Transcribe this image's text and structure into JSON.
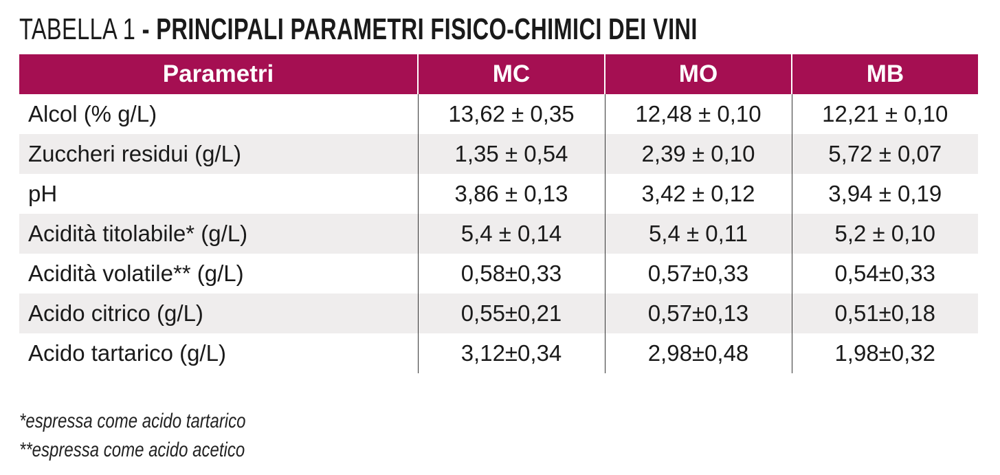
{
  "title": {
    "label": "TABELLA 1",
    "text": "- PRINCIPALI PARAMETRI FISICO-CHIMICI DEI VINI"
  },
  "table": {
    "header": [
      "Parametri",
      "MC",
      "MO",
      "MB"
    ],
    "rows": [
      [
        "Alcol (% g/L)",
        "13,62 ± 0,35",
        "12,48 ± 0,10",
        "12,21 ± 0,10"
      ],
      [
        "Zuccheri residui (g/L)",
        "1,35 ± 0,54",
        "2,39 ± 0,10",
        "5,72 ± 0,07"
      ],
      [
        "pH",
        "3,86 ± 0,13",
        "3,42 ± 0,12",
        "3,94 ± 0,19"
      ],
      [
        "Acidità titolabile* (g/L)",
        "5,4 ± 0,14",
        "5,4 ± 0,11",
        "5,2 ± 0,10"
      ],
      [
        "Acidità volatile** (g/L)",
        "0,58±0,33",
        "0,57±0,33",
        "0,54±0,33"
      ],
      [
        "Acido citrico (g/L)",
        "0,55±0,21",
        "0,57±0,13",
        "0,51±0,18"
      ],
      [
        "Acido tartarico (g/L)",
        "3,12±0,34",
        "2,98±0,48",
        "1,98±0,32"
      ]
    ]
  },
  "footnotes": [
    "*espressa come acido tartarico",
    "**espressa come acido acetico"
  ]
}
